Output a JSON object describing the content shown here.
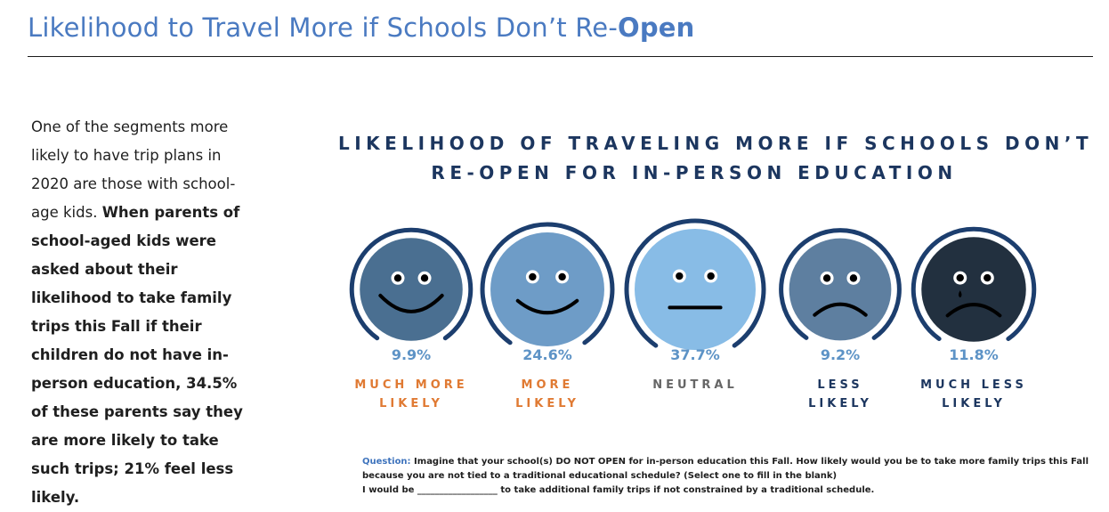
{
  "slide": {
    "title_regular": "Likelihood to Travel More if Schools Don’t Re-",
    "title_bold": "Open"
  },
  "body": {
    "intro": "One of the segments more likely to have trip plans in 2020 are those with school-age kids.",
    "emphasis": "When parents of school-aged kids were asked about their likelihood to take family trips this Fall if their children do not have in-person education, 34.5% of these parents say they are more likely to take such trips; 21% feel less likely."
  },
  "chart_data": {
    "type": "pictorial",
    "title_line1": "LIKELIHOOD OF TRAVELING MORE IF SCHOOLS DON’T",
    "title_line2": "RE-OPEN FOR IN-PERSON EDUCATION",
    "unit": "%",
    "categories": [
      {
        "label_lines": [
          "MUCH MORE",
          "LIKELY"
        ],
        "value": 9.9,
        "value_label": "9.9%",
        "mood": "big-smile",
        "face_color": "#4a6f91",
        "label_color": "#e07a33"
      },
      {
        "label_lines": [
          "MORE",
          "LIKELY"
        ],
        "value": 24.6,
        "value_label": "24.6%",
        "mood": "smile",
        "face_color": "#6e9cc7",
        "label_color": "#e07a33"
      },
      {
        "label_lines": [
          "NEUTRAL"
        ],
        "value": 37.7,
        "value_label": "37.7%",
        "mood": "neutral",
        "face_color": "#88bce6",
        "label_color": "#666666"
      },
      {
        "label_lines": [
          "LESS",
          "LIKELY"
        ],
        "value": 9.2,
        "value_label": "9.2%",
        "mood": "frown",
        "face_color": "#5e7fa0",
        "label_color": "#1c365f"
      },
      {
        "label_lines": [
          "MUCH LESS",
          "LIKELY"
        ],
        "value": 11.8,
        "value_label": "11.8%",
        "mood": "frown-tear",
        "face_color": "#22303f",
        "label_color": "#1c365f"
      }
    ],
    "colors": {
      "ring": "#1c3e6e",
      "value_text": "#5d93c6"
    }
  },
  "question": {
    "label": "Question:",
    "text": "Imagine that your school(s) DO NOT OPEN for in-person education this Fall.  How likely would you be to take more family trips this Fall because you are not tied to a traditional educational schedule? (Select one to fill in the blank)",
    "line2": "I would be __________________ to take additional family trips if not constrained by a traditional schedule."
  }
}
